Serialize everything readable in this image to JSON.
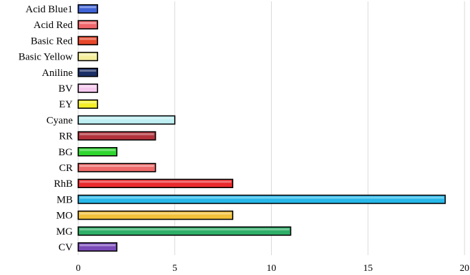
{
  "chart_data": {
    "type": "bar",
    "orientation": "horizontal",
    "categories": [
      "Acid Blue1",
      "Acid Red",
      "Basic Red",
      "Basic Yellow",
      "Aniline",
      "BV",
      "EY",
      "Cyane",
      "RR",
      "BG",
      "CR",
      "RhB",
      "MB",
      "MO",
      "MG",
      "CV"
    ],
    "values": [
      1,
      1,
      1,
      1,
      1,
      1,
      1,
      5,
      4,
      2,
      4,
      8,
      19,
      8,
      11,
      2
    ],
    "colors": [
      "#3f63d6",
      "#f0666a",
      "#e8472a",
      "#f5ef9c",
      "#1b2f66",
      "#f6c8ef",
      "#f3ee28",
      "#bfeff2",
      "#b3323b",
      "#2fd62f",
      "#ef6a6a",
      "#ea2a2e",
      "#27b8ea",
      "#f2c23a",
      "#2faf68",
      "#7a4ab8"
    ],
    "xlim": [
      0,
      20
    ],
    "xticks": [
      0,
      5,
      10,
      15,
      20
    ],
    "grid": "vertical",
    "legend": "none",
    "title": "",
    "xlabel": "",
    "ylabel": ""
  }
}
